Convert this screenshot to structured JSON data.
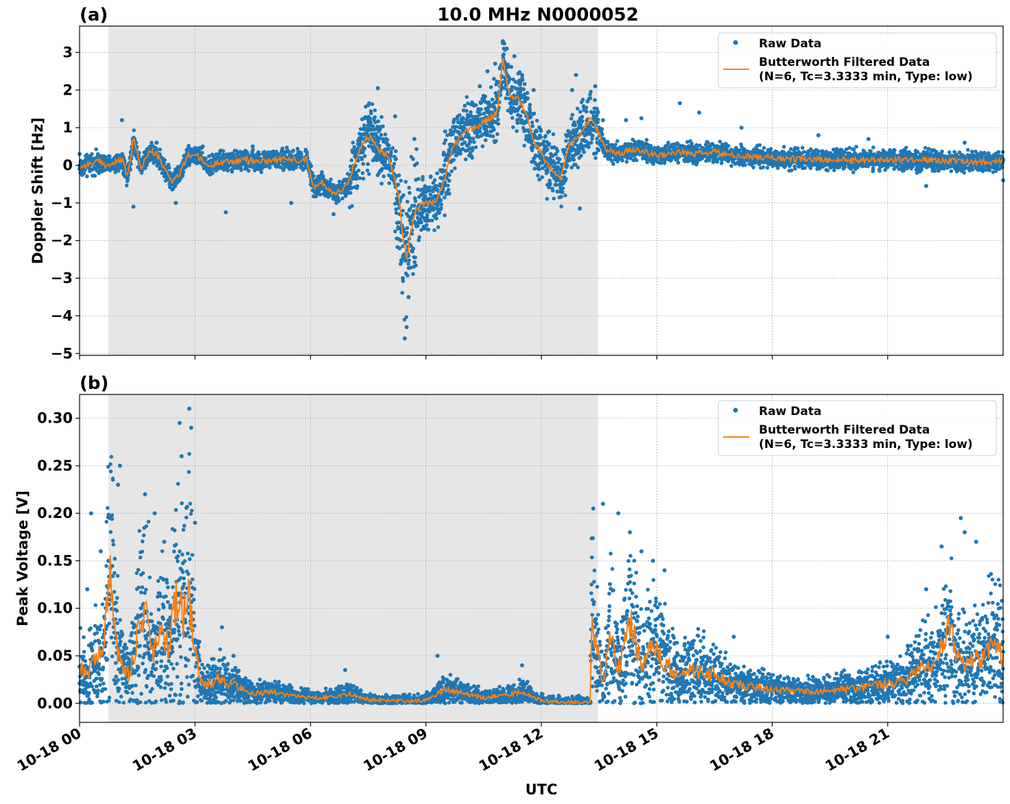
{
  "figure": {
    "title": "10.0 MHz N0000052",
    "xlabel": "UTC",
    "x_ticks": [
      "10-18 00",
      "10-18 03",
      "10-18 06",
      "10-18 09",
      "10-18 12",
      "10-18 15",
      "10-18 18",
      "10-18 21"
    ],
    "colors": {
      "raw": "#1f77b4",
      "filtered": "#ff7f0e",
      "shade": "#e6e6e6",
      "grid": "#b0b0b0"
    }
  },
  "chart_data": [
    {
      "type": "scatter",
      "panel_label": "(a)",
      "title": "10.0 MHz N0000052",
      "ylabel": "Doppler Shift [Hz]",
      "xlabel": "UTC",
      "x_unit": "hours since 10-18 00 UTC",
      "xlim": [
        0,
        24
      ],
      "ylim": [
        -5.05,
        3.7
      ],
      "y_ticks": [
        3,
        2,
        1,
        0,
        -1,
        -2,
        -3,
        -4,
        -5
      ],
      "y_tick_labels": [
        "3",
        "2",
        "1",
        "0",
        "−1",
        "−2",
        "−3",
        "−4",
        "−5"
      ],
      "shaded_interval": [
        0.75,
        13.47
      ],
      "grid": true,
      "legend": {
        "placement": "top-right",
        "raw_label": "Raw Data",
        "filtered_label": "Butterworth Filtered Data",
        "filtered_params": "(N=6, Tc=3.3333 min, Type: low)"
      },
      "series": [
        {
          "name": "Butterworth Filtered Data",
          "style": "line",
          "x": [
            0,
            0.3,
            0.5,
            0.7,
            0.9,
            1.1,
            1.25,
            1.4,
            1.6,
            1.8,
            2.0,
            2.2,
            2.4,
            2.6,
            2.8,
            3.0,
            3.2,
            3.4,
            3.6,
            3.8,
            4.0,
            4.3,
            4.6,
            5.0,
            5.5,
            5.9,
            6.1,
            6.3,
            6.6,
            6.8,
            7.0,
            7.2,
            7.4,
            7.6,
            7.8,
            8.0,
            8.15,
            8.3,
            8.4,
            8.5,
            8.6,
            8.75,
            8.9,
            9.1,
            9.3,
            9.5,
            9.7,
            9.9,
            10.1,
            10.3,
            10.5,
            10.7,
            10.85,
            11.0,
            11.1,
            11.2,
            11.4,
            11.6,
            11.8,
            12.0,
            12.2,
            12.5,
            12.7,
            12.9,
            13.1,
            13.3,
            13.5,
            13.7,
            14.0,
            14.5,
            15.0,
            15.5,
            16.0,
            16.5,
            17.0,
            18.0,
            19.0,
            20.0,
            21.0,
            22.0,
            23.0,
            24.0
          ],
          "y": [
            -0.05,
            0.05,
            0.1,
            0.0,
            0.05,
            0.15,
            -0.3,
            0.7,
            -0.05,
            0.35,
            0.3,
            -0.1,
            -0.4,
            -0.25,
            0.25,
            0.3,
            0.1,
            -0.05,
            0.1,
            0.1,
            0.1,
            0.15,
            0.1,
            0.15,
            0.15,
            0.15,
            -0.6,
            -0.45,
            -0.75,
            -0.65,
            -0.45,
            0.2,
            0.7,
            0.75,
            0.4,
            0.3,
            -0.2,
            -0.8,
            -1.9,
            -2.5,
            -1.8,
            -1.2,
            -1.0,
            -1.0,
            -0.9,
            -0.3,
            0.5,
            0.8,
            0.95,
            1.0,
            1.15,
            1.3,
            1.4,
            2.8,
            2.2,
            1.8,
            1.8,
            1.4,
            0.6,
            0.35,
            -0.05,
            -0.35,
            0.5,
            0.7,
            0.95,
            1.3,
            0.85,
            0.4,
            0.3,
            0.45,
            0.25,
            0.35,
            0.3,
            0.35,
            0.25,
            0.2,
            0.15,
            0.15,
            0.15,
            0.15,
            0.1,
            0.1
          ]
        },
        {
          "name": "Raw Data",
          "style": "scatter",
          "x": [
            0.0,
            1.1,
            1.4,
            2.0,
            2.5,
            3.2,
            3.8,
            4.5,
            5.5,
            6.6,
            7.5,
            7.75,
            8.2,
            8.4,
            8.45,
            8.5,
            8.55,
            8.7,
            9.5,
            10.4,
            10.6,
            10.8,
            11.0,
            11.1,
            11.3,
            11.5,
            11.8,
            12.2,
            12.5,
            12.8,
            12.9,
            13.0,
            13.2,
            13.4,
            13.6,
            14.2,
            14.6,
            15.6,
            16.1,
            17.2,
            19.2,
            20.5,
            22.0,
            23.0,
            24.0
          ],
          "y": [
            0.3,
            1.2,
            -1.1,
            0.6,
            -1.0,
            0.5,
            -1.25,
            0.5,
            -1.0,
            -1.3,
            1.6,
            2.05,
            1.3,
            -3.0,
            -4.6,
            -4.3,
            -3.5,
            0.7,
            0.9,
            2.1,
            2.5,
            2.7,
            3.3,
            3.1,
            2.9,
            2.4,
            2.0,
            0.9,
            -0.7,
            2.0,
            2.4,
            -1.15,
            1.7,
            2.1,
            1.2,
            1.2,
            1.25,
            1.65,
            1.4,
            1.0,
            0.8,
            0.7,
            -0.55,
            0.6,
            -0.4
          ]
        }
      ]
    },
    {
      "type": "scatter",
      "panel_label": "(b)",
      "ylabel": "Peak Voltage [V]",
      "xlabel": "UTC",
      "x_unit": "hours since 10-18 00 UTC",
      "xlim": [
        0,
        24
      ],
      "ylim": [
        -0.02,
        0.325
      ],
      "y_ticks": [
        0.3,
        0.25,
        0.2,
        0.15,
        0.1,
        0.05,
        0.0
      ],
      "y_tick_labels": [
        "0.30",
        "0.25",
        "0.20",
        "0.15",
        "0.10",
        "0.05",
        "0.00"
      ],
      "shaded_interval": [
        0.75,
        13.47
      ],
      "grid": true,
      "legend": {
        "placement": "top-right",
        "raw_label": "Raw Data",
        "filtered_label": "Butterworth Filtered Data",
        "filtered_params": "(N=6, Tc=3.3333 min, Type: low)"
      },
      "series": [
        {
          "name": "Butterworth Filtered Data",
          "style": "line",
          "x": [
            0,
            0.2,
            0.4,
            0.6,
            0.8,
            0.95,
            1.1,
            1.3,
            1.5,
            1.7,
            1.9,
            2.1,
            2.3,
            2.5,
            2.7,
            2.85,
            3.0,
            3.15,
            3.3,
            3.6,
            4.0,
            4.5,
            5.0,
            5.5,
            6.0,
            6.5,
            7.0,
            7.5,
            8.0,
            8.5,
            9.0,
            9.5,
            10.0,
            10.5,
            11.0,
            11.5,
            12.0,
            12.5,
            13.0,
            13.27,
            13.3,
            13.45,
            13.6,
            13.8,
            14.0,
            14.3,
            14.6,
            14.9,
            15.2,
            15.5,
            16.0,
            16.5,
            17.0,
            18.0,
            19.0,
            20.0,
            21.0,
            21.5,
            22.0,
            22.3,
            22.6,
            22.9,
            23.2,
            23.4,
            23.6,
            23.8,
            24.0
          ],
          "y": [
            0.04,
            0.03,
            0.05,
            0.05,
            0.14,
            0.06,
            0.04,
            0.03,
            0.07,
            0.1,
            0.05,
            0.07,
            0.06,
            0.11,
            0.09,
            0.11,
            0.06,
            0.02,
            0.02,
            0.025,
            0.02,
            0.01,
            0.012,
            0.008,
            0.006,
            0.006,
            0.01,
            0.004,
            0.003,
            0.002,
            0.003,
            0.015,
            0.01,
            0.006,
            0.008,
            0.012,
            0.003,
            0.001,
            0.001,
            0.001,
            0.09,
            0.06,
            0.02,
            0.075,
            0.035,
            0.09,
            0.04,
            0.06,
            0.045,
            0.03,
            0.035,
            0.03,
            0.02,
            0.015,
            0.012,
            0.015,
            0.02,
            0.025,
            0.04,
            0.045,
            0.08,
            0.04,
            0.05,
            0.045,
            0.06,
            0.065,
            0.045
          ]
        },
        {
          "name": "Raw Data",
          "style": "scatter",
          "x": [
            0.2,
            0.3,
            0.55,
            0.75,
            1.0,
            1.05,
            1.7,
            1.95,
            2.2,
            2.6,
            2.65,
            2.85,
            2.9,
            3.0,
            3.7,
            4.0,
            6.9,
            9.3,
            11.5,
            13.35,
            13.6,
            14.0,
            14.3,
            14.6,
            14.9,
            15.2,
            17.0,
            21.0,
            22.0,
            22.4,
            22.9,
            23.0,
            23.3
          ],
          "y": [
            0.12,
            0.2,
            0.16,
            0.15,
            0.23,
            0.25,
            0.22,
            0.2,
            0.17,
            0.295,
            0.26,
            0.31,
            0.29,
            0.19,
            0.08,
            0.05,
            0.035,
            0.05,
            0.04,
            0.205,
            0.21,
            0.2,
            0.18,
            0.16,
            0.15,
            0.14,
            0.07,
            0.07,
            0.12,
            0.165,
            0.195,
            0.18,
            0.17
          ]
        }
      ]
    }
  ]
}
